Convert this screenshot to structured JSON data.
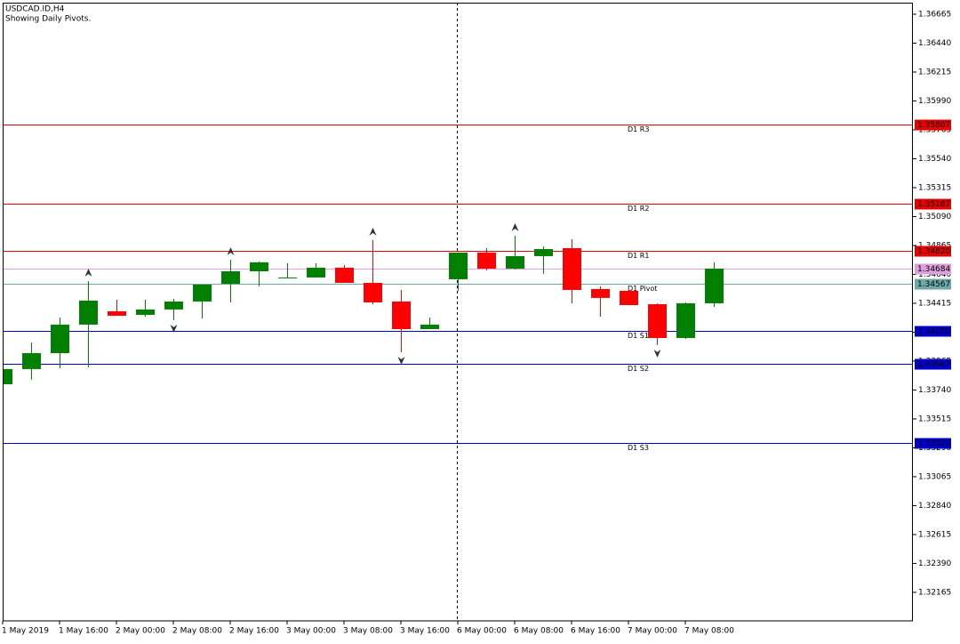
{
  "chart_data": {
    "type": "candlestick",
    "title": "USDCAD.ID,H4",
    "subtitle": "Showing Daily Pivots.",
    "categories": [
      "1 May 2019",
      null,
      "1 May 16:00",
      null,
      "2 May 00:00",
      null,
      "2 May 08:00",
      null,
      "2 May 16:00",
      null,
      "3 May 00:00",
      null,
      "3 May 08:00",
      null,
      "3 May 16:00",
      null,
      "6 May 00:00",
      null,
      "6 May 08:00",
      null,
      "6 May 16:00",
      null,
      "7 May 00:00",
      null,
      "7 May 08:00",
      null
    ],
    "open": [
      1.33785,
      1.33903,
      1.34027,
      1.34249,
      1.34353,
      1.34325,
      1.34367,
      1.34429,
      1.34567,
      1.34664,
      1.34609,
      1.34616,
      1.34692,
      1.34574,
      1.34429,
      1.34214,
      1.34602,
      1.3481,
      1.34685,
      1.34782,
      1.34844,
      1.34526,
      1.34512,
      1.34408,
      1.34145,
      1.34415
    ],
    "high": [
      1.33917,
      1.3411,
      1.34304,
      1.34588,
      1.34443,
      1.34443,
      1.3445,
      1.3456,
      1.34754,
      1.3474,
      1.34727,
      1.34727,
      1.34713,
      1.34907,
      1.34519,
      1.34304,
      1.3481,
      1.34844,
      1.34941,
      1.34858,
      1.34914,
      1.34547,
      1.34519,
      1.34415,
      1.34422,
      1.34734
    ],
    "low": [
      1.33778,
      1.3382,
      1.3391,
      1.33917,
      1.34318,
      1.34311,
      1.34284,
      1.34297,
      1.34422,
      1.34547,
      1.34609,
      1.34616,
      1.34574,
      1.34408,
      1.34034,
      1.34214,
      1.34512,
      1.34671,
      1.34678,
      1.34644,
      1.34415,
      1.34311,
      1.34401,
      1.3409,
      1.34138,
      1.34387
    ],
    "close": [
      1.33903,
      1.34027,
      1.34249,
      1.34436,
      1.34318,
      1.34367,
      1.34429,
      1.3456,
      1.34664,
      1.34734,
      1.34616,
      1.34692,
      1.34574,
      1.34422,
      1.34214,
      1.34249,
      1.3481,
      1.34685,
      1.34782,
      1.34837,
      1.34519,
      1.34457,
      1.34401,
      1.34145,
      1.34415,
      1.34685
    ],
    "up_color": "#008000",
    "down_color": "#ff0000",
    "fractal_up": [
      3,
      8,
      13,
      18
    ],
    "fractal_down": [
      6,
      14,
      23
    ],
    "levels": [
      {
        "name": "D1 R3",
        "value": 1.35807,
        "color": "#e60000"
      },
      {
        "name": "D1 R2",
        "value": 1.35187,
        "color": "#e60000"
      },
      {
        "name": "D1 R1",
        "value": 1.3482,
        "label": "1.34820",
        "color": "#e60000"
      },
      {
        "value": 1.34684,
        "color": "#dda0dd"
      },
      {
        "name": "D1 Pivot",
        "value": 1.34567,
        "color": "#6fa8a8"
      },
      {
        "name": "D1 S1",
        "value": 1.342,
        "label": "1.34200",
        "color": "#0000c8"
      },
      {
        "name": "D1 S2",
        "value": 1.33947,
        "color": "#0000c8"
      },
      {
        "name": "D1 S3",
        "value": 1.33327,
        "color": "#0000c8"
      }
    ],
    "ylim": [
      1.31943,
      1.36755
    ],
    "yticks": [
      1.36665,
      {
        "value": 1.3644,
        "label": "1.36440"
      },
      1.36215,
      {
        "value": 1.3599,
        "label": "1.35990"
      },
      1.35765,
      {
        "value": 1.3554,
        "label": "1.35540"
      },
      1.35315,
      {
        "value": 1.3509,
        "label": "1.35090"
      },
      1.34865,
      {
        "value": 1.3464,
        "label": "1.34640"
      },
      1.34415,
      {
        "value": 1.3419,
        "label": "1.34190"
      },
      1.33965,
      {
        "value": 1.3374,
        "label": "1.33740"
      },
      1.33515,
      {
        "value": 1.3329,
        "label": "1.33290"
      },
      1.33065,
      {
        "value": 1.3284,
        "label": "1.32840"
      },
      1.32615,
      {
        "value": 1.3239,
        "label": "1.32390"
      },
      1.32165
    ]
  }
}
